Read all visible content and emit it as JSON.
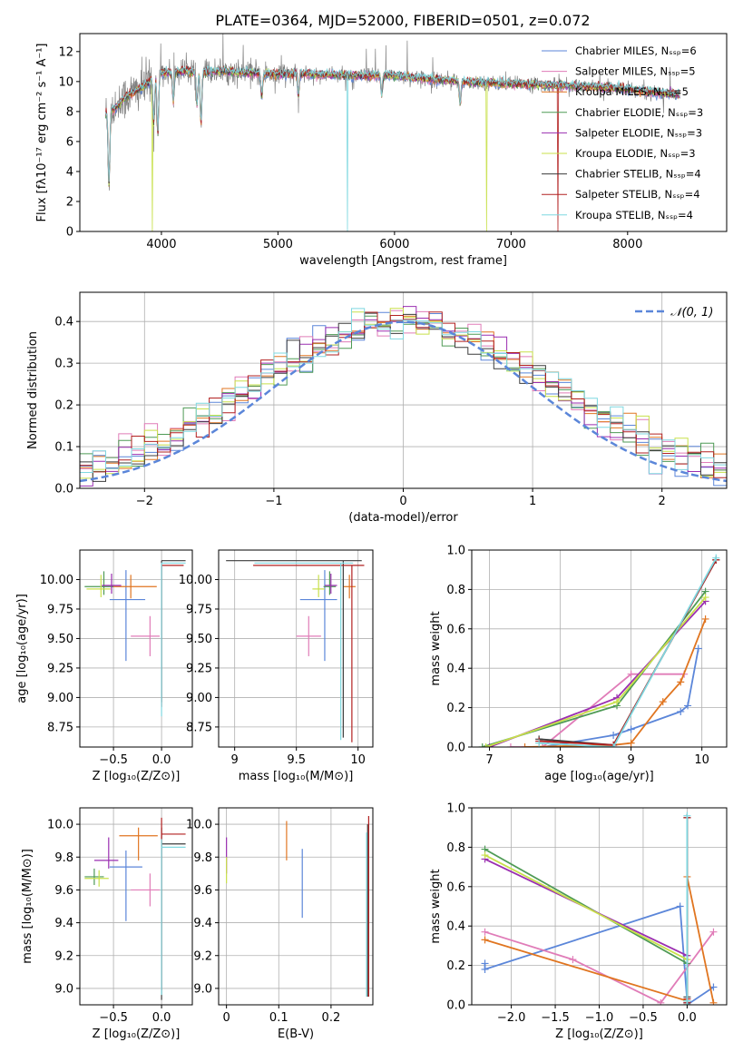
{
  "figure": {
    "title": "PLATE=0364, MJD=52000, FIBERID=0501, z=0.072"
  },
  "colors": {
    "blue": "#5b86d9",
    "pink": "#e07cb8",
    "orange": "#e07520",
    "green": "#4e9a55",
    "purple": "#9a2eb0",
    "lime": "#c8e04a",
    "dark": "#3c3c3c",
    "red": "#b22020",
    "cyan": "#7fd8e0",
    "gray": "#808080"
  },
  "chart_data": [
    {
      "id": "spectrum",
      "type": "line",
      "xlabel": "wavelength [Angstrom, rest frame]",
      "ylabel": "Flux [fλ10⁻¹⁷ erg cm⁻² s⁻¹ A⁻¹]",
      "xlim": [
        3300,
        8850
      ],
      "ylim": [
        0,
        13.2
      ],
      "xticks": [
        4000,
        5000,
        6000,
        7000,
        8000
      ],
      "yticks": [
        0,
        2,
        4,
        6,
        8,
        10,
        12
      ],
      "grid": false,
      "legend_position": "upper-right",
      "legend": [
        {
          "label": "Chabrier MILES, Nₛₛₚ=6",
          "color": "blue"
        },
        {
          "label": "Salpeter MILES, Nₛₛₚ=5",
          "color": "pink"
        },
        {
          "label": "Kroupa MILES, Nₛₛₚ=5",
          "color": "orange"
        },
        {
          "label": "Chabrier ELODIE, Nₛₛₚ=3",
          "color": "green"
        },
        {
          "label": "Salpeter ELODIE, Nₛₛₚ=3",
          "color": "purple"
        },
        {
          "label": "Kroupa ELODIE, Nₛₛₚ=3",
          "color": "lime"
        },
        {
          "label": "Chabrier STELIB, Nₛₛₚ=4",
          "color": "dark"
        },
        {
          "label": "Salpeter STELIB, Nₛₛₚ=4",
          "color": "red"
        },
        {
          "label": "Kroupa STELIB, Nₛₛₚ=4",
          "color": "cyan"
        }
      ],
      "continuum": {
        "x": [
          3520,
          3600,
          3700,
          3800,
          3900,
          4000,
          4100,
          4200,
          4300,
          4500,
          4700,
          5000,
          5300,
          5600,
          6000,
          6400,
          6800,
          7200,
          7600,
          8000,
          8200,
          8450
        ],
        "y": [
          7.8,
          8.2,
          9.0,
          9.4,
          10.0,
          10.6,
          10.6,
          10.7,
          10.6,
          10.7,
          10.6,
          10.5,
          10.5,
          10.4,
          10.4,
          10.1,
          9.9,
          9.8,
          9.7,
          9.5,
          9.3,
          9.1
        ]
      },
      "absorption_lines": [
        {
          "x": 3550,
          "depth": 4.8
        },
        {
          "x": 3934,
          "depth": 3.0
        },
        {
          "x": 3969,
          "depth": 4.0
        },
        {
          "x": 4102,
          "depth": 2.0
        },
        {
          "x": 4305,
          "depth": 2.2
        },
        {
          "x": 4340,
          "depth": 3.5
        },
        {
          "x": 4861,
          "depth": 1.6
        },
        {
          "x": 5175,
          "depth": 1.5
        },
        {
          "x": 5890,
          "depth": 1.3
        },
        {
          "x": 6563,
          "depth": 1.6
        }
      ],
      "model_dropouts": [
        {
          "x": 3920,
          "color": "lime"
        },
        {
          "x": 5595,
          "color": "cyan"
        },
        {
          "x": 6790,
          "color": "lime"
        },
        {
          "x": 7400,
          "color": "red"
        }
      ]
    },
    {
      "id": "residuals",
      "type": "histogram",
      "xlabel": "(data-model)/error",
      "ylabel": "Normed distribution",
      "xlim": [
        -2.5,
        2.5
      ],
      "ylim": [
        0,
        0.47
      ],
      "xticks": [
        -2,
        -1,
        0,
        1,
        2
      ],
      "yticks": [
        0.0,
        0.1,
        0.2,
        0.3,
        0.4
      ],
      "grid": true,
      "bin_width": 0.1,
      "legend_position": "upper-right",
      "legend": [
        {
          "label": "𝒩(0, 1)",
          "color": "blue",
          "style": "dashed"
        }
      ],
      "reference": {
        "name": "normal",
        "mean": 0,
        "sigma": 1
      }
    },
    {
      "id": "age-vs-Z",
      "type": "errorbar",
      "xlabel": "Z [log₁₀(Z/Z⊙)]",
      "ylabel": "age  [log₁₀(age/yr)]",
      "xlim": [
        -0.85,
        0.32
      ],
      "ylim": [
        8.58,
        10.25
      ],
      "xticks": [
        -0.5,
        0.0
      ],
      "xticklabels": [
        "−0.5",
        "0.0"
      ],
      "yticks": [
        8.75,
        9.0,
        9.25,
        9.5,
        9.75,
        10.0
      ],
      "yticklabels": [
        "8.75",
        "9.00",
        "9.25",
        "9.50",
        "9.75",
        "10.00"
      ],
      "grid": true,
      "points": [
        {
          "c": "blue",
          "x": -0.37,
          "y": 9.83,
          "xlo": 0.17,
          "xhi": 0.2,
          "ylo": 0.52,
          "yhi": 0.25
        },
        {
          "c": "pink",
          "x": -0.12,
          "y": 9.52,
          "xlo": 0.2,
          "xhi": 0.1,
          "ylo": 0.17,
          "yhi": 0.17
        },
        {
          "c": "orange",
          "x": -0.32,
          "y": 9.94,
          "xlo": 0.2,
          "xhi": 0.27,
          "ylo": 0.1,
          "yhi": 0.1
        },
        {
          "c": "green",
          "x": -0.6,
          "y": 9.94,
          "xlo": 0.2,
          "xhi": 0.1,
          "ylo": 0.07,
          "yhi": 0.13
        },
        {
          "c": "purple",
          "x": -0.52,
          "y": 9.95,
          "xlo": 0.1,
          "xhi": 0.1,
          "ylo": 0.07,
          "yhi": 0.1
        },
        {
          "c": "lime",
          "x": -0.63,
          "y": 9.92,
          "xlo": 0.15,
          "xhi": 0.1,
          "ylo": 0.07,
          "yhi": 0.12
        },
        {
          "c": "dark",
          "x": 0.0,
          "y": 10.16,
          "xlo": 0.0,
          "xhi": 0.25,
          "ylo": 1.2,
          "yhi": 0.0
        },
        {
          "c": "red",
          "x": 0.0,
          "y": 10.12,
          "xlo": 0.0,
          "xhi": 0.23,
          "ylo": 1.2,
          "yhi": 0.0
        },
        {
          "c": "cyan",
          "x": 0.0,
          "y": 10.14,
          "xlo": 0.0,
          "xhi": 0.25,
          "ylo": 1.3,
          "yhi": 0.0
        }
      ]
    },
    {
      "id": "age-vs-mass",
      "type": "errorbar",
      "xlabel": "mass [log₁₀(M/M⊙)]",
      "ylabel": "",
      "xlim": [
        8.87,
        10.12
      ],
      "ylim": [
        8.58,
        10.25
      ],
      "xticks": [
        9.0,
        9.5,
        10.0
      ],
      "yticks": [
        8.75,
        9.0,
        9.25,
        9.5,
        9.75,
        10.0
      ],
      "yticklabels": [
        "8.75",
        "9.00",
        "9.25",
        "9.50",
        "9.75",
        "10.00"
      ],
      "grid": true,
      "points": [
        {
          "c": "blue",
          "x": 9.73,
          "y": 9.83,
          "xlo": 0.2,
          "xhi": 0.1,
          "ylo": 0.52,
          "yhi": 0.25
        },
        {
          "c": "pink",
          "x": 9.6,
          "y": 9.52,
          "xlo": 0.1,
          "xhi": 0.1,
          "ylo": 0.17,
          "yhi": 0.17
        },
        {
          "c": "orange",
          "x": 9.93,
          "y": 9.94,
          "xlo": 0.05,
          "xhi": 0.05,
          "ylo": 0.1,
          "yhi": 0.1
        },
        {
          "c": "green",
          "x": 9.77,
          "y": 9.94,
          "xlo": 0.05,
          "xhi": 0.05,
          "ylo": 0.07,
          "yhi": 0.13
        },
        {
          "c": "purple",
          "x": 9.78,
          "y": 9.95,
          "xlo": 0.05,
          "xhi": 0.05,
          "ylo": 0.07,
          "yhi": 0.1
        },
        {
          "c": "lime",
          "x": 9.68,
          "y": 9.92,
          "xlo": 0.05,
          "xhi": 0.05,
          "ylo": 0.07,
          "yhi": 0.12
        },
        {
          "c": "dark",
          "x": 9.88,
          "y": 10.16,
          "xlo": 0.95,
          "xhi": 0.15,
          "ylo": 1.5,
          "yhi": 0.0
        },
        {
          "c": "red",
          "x": 9.95,
          "y": 10.12,
          "xlo": 0.8,
          "xhi": 0.1,
          "ylo": 1.5,
          "yhi": 0.0
        },
        {
          "c": "cyan",
          "x": 9.86,
          "y": 10.14,
          "xlo": 0.7,
          "xhi": 0.1,
          "ylo": 1.5,
          "yhi": 0.0
        }
      ]
    },
    {
      "id": "massweight-vs-age",
      "type": "line",
      "xlabel": "age  [log₁₀(age/yr)]",
      "ylabel": "mass weight",
      "xlim": [
        6.75,
        10.35
      ],
      "ylim": [
        0,
        1.0
      ],
      "xticks": [
        7,
        8,
        9,
        10
      ],
      "yticks": [
        0.0,
        0.2,
        0.4,
        0.6,
        0.8,
        1.0
      ],
      "grid": true,
      "series": [
        {
          "c": "blue",
          "x": [
            7.75,
            8.75,
            9.0,
            9.7,
            9.8,
            9.95
          ],
          "y": [
            0.0,
            0.06,
            0.09,
            0.18,
            0.21,
            0.5
          ]
        },
        {
          "c": "pink",
          "x": [
            7.3,
            7.75,
            9.0,
            9.75
          ],
          "y": [
            0.0,
            0.0,
            0.37,
            0.37
          ]
        },
        {
          "c": "orange",
          "x": [
            7.5,
            8.75,
            9.0,
            9.45,
            9.7,
            10.05
          ],
          "y": [
            0.0,
            0.01,
            0.02,
            0.23,
            0.33,
            0.65
          ]
        },
        {
          "c": "green",
          "x": [
            6.9,
            8.8,
            10.05
          ],
          "y": [
            0.0,
            0.21,
            0.79
          ]
        },
        {
          "c": "purple",
          "x": [
            7.0,
            8.8,
            10.05
          ],
          "y": [
            0.0,
            0.25,
            0.74
          ]
        },
        {
          "c": "lime",
          "x": [
            6.95,
            8.8,
            10.05
          ],
          "y": [
            0.0,
            0.23,
            0.76
          ]
        },
        {
          "c": "dark",
          "x": [
            7.7,
            8.75,
            10.2
          ],
          "y": [
            0.04,
            0.01,
            0.95
          ]
        },
        {
          "c": "red",
          "x": [
            7.7,
            8.75,
            10.2
          ],
          "y": [
            0.03,
            0.01,
            0.95
          ]
        },
        {
          "c": "cyan",
          "x": [
            7.7,
            8.75,
            10.2
          ],
          "y": [
            0.02,
            0.0,
            0.96
          ]
        }
      ]
    },
    {
      "id": "mass-vs-Z",
      "type": "errorbar",
      "xlabel": "Z [log₁₀(Z/Z⊙)]",
      "ylabel": "mass [log₁₀(M/M⊙)]",
      "xlim": [
        -0.85,
        0.32
      ],
      "ylim": [
        8.9,
        10.1
      ],
      "xticks": [
        -0.5,
        0.0
      ],
      "xticklabels": [
        "−0.5",
        "0.0"
      ],
      "yticks": [
        9.0,
        9.2,
        9.4,
        9.6,
        9.8,
        10.0
      ],
      "grid": true,
      "points": [
        {
          "c": "blue",
          "x": -0.37,
          "y": 9.74,
          "xlo": 0.17,
          "xhi": 0.17,
          "ylo": 0.33,
          "yhi": 0.1
        },
        {
          "c": "pink",
          "x": -0.12,
          "y": 9.6,
          "xlo": 0.2,
          "xhi": 0.1,
          "ylo": 0.1,
          "yhi": 0.1
        },
        {
          "c": "orange",
          "x": -0.24,
          "y": 9.93,
          "xlo": 0.2,
          "xhi": 0.2,
          "ylo": 0.15,
          "yhi": 0.05
        },
        {
          "c": "green",
          "x": -0.7,
          "y": 9.68,
          "xlo": 0.1,
          "xhi": 0.1,
          "ylo": 0.05,
          "yhi": 0.05
        },
        {
          "c": "purple",
          "x": -0.55,
          "y": 9.78,
          "xlo": 0.15,
          "xhi": 0.1,
          "ylo": 0.05,
          "yhi": 0.14
        },
        {
          "c": "lime",
          "x": -0.65,
          "y": 9.67,
          "xlo": 0.15,
          "xhi": 0.1,
          "ylo": 0.05,
          "yhi": 0.05
        },
        {
          "c": "dark",
          "x": 0.0,
          "y": 9.88,
          "xlo": 0.0,
          "xhi": 0.25,
          "ylo": 0.95,
          "yhi": 0.1
        },
        {
          "c": "red",
          "x": 0.0,
          "y": 9.94,
          "xlo": 0.0,
          "xhi": 0.25,
          "ylo": 0.95,
          "yhi": 0.1
        },
        {
          "c": "cyan",
          "x": 0.0,
          "y": 9.86,
          "xlo": 0.0,
          "xhi": 0.25,
          "ylo": 0.9,
          "yhi": 0.05
        }
      ]
    },
    {
      "id": "mass-vs-ebv",
      "type": "errorbar",
      "xlabel": "E(B-V)",
      "ylabel": "",
      "xlim": [
        -0.015,
        0.28
      ],
      "ylim": [
        8.9,
        10.1
      ],
      "xticks": [
        0.0,
        0.1,
        0.2
      ],
      "yticks": [
        9.0,
        9.2,
        9.4,
        9.6,
        9.8,
        10.0
      ],
      "grid": true,
      "points": [
        {
          "c": "blue",
          "x": 0.145,
          "y": 9.65,
          "xlo": 0,
          "xhi": 0,
          "ylo": 0.22,
          "yhi": 0.2
        },
        {
          "c": "orange",
          "x": 0.115,
          "y": 9.9,
          "xlo": 0,
          "xhi": 0,
          "ylo": 0.12,
          "yhi": 0.12
        },
        {
          "c": "purple",
          "x": 0.0,
          "y": 9.8,
          "xlo": 0,
          "xhi": 0,
          "ylo": 0.1,
          "yhi": 0.12
        },
        {
          "c": "lime",
          "x": 0.0,
          "y": 9.72,
          "xlo": 0,
          "xhi": 0,
          "ylo": 0.08,
          "yhi": 0.08
        },
        {
          "c": "dark",
          "x": 0.27,
          "y": 9.5,
          "xlo": 0,
          "xhi": 0,
          "ylo": 0.55,
          "yhi": 0.5
        },
        {
          "c": "red",
          "x": 0.272,
          "y": 9.55,
          "xlo": 0,
          "xhi": 0,
          "ylo": 0.6,
          "yhi": 0.5
        },
        {
          "c": "cyan",
          "x": 0.268,
          "y": 9.5,
          "xlo": 0,
          "xhi": 0,
          "ylo": 0.55,
          "yhi": 0.45
        }
      ]
    },
    {
      "id": "massweight-vs-Z",
      "type": "line",
      "xlabel": "Z [log₁₀(Z/Z⊙)]",
      "ylabel": "mass weight",
      "xlim": [
        -2.45,
        0.45
      ],
      "ylim": [
        0,
        1.0
      ],
      "xticks": [
        -2.0,
        -1.5,
        -1.0,
        -0.5,
        0.0
      ],
      "xticklabels": [
        "−2.0",
        "−1.5",
        "−1.0",
        "−0.5",
        "0.0"
      ],
      "yticks": [
        0.0,
        0.2,
        0.4,
        0.6,
        0.8,
        1.0
      ],
      "grid": true,
      "series": [
        {
          "c": "blue",
          "x": [
            -2.3,
            -2.3,
            -0.08,
            0.0,
            0.0,
            0.3
          ],
          "y": [
            0.21,
            0.18,
            0.5,
            0.02,
            0.0,
            0.09
          ]
        },
        {
          "c": "pink",
          "x": [
            -2.3,
            -1.3,
            -0.3,
            0.3
          ],
          "y": [
            0.37,
            0.23,
            0.01,
            0.37
          ]
        },
        {
          "c": "orange",
          "x": [
            -2.3,
            0.0,
            0.0,
            0.3
          ],
          "y": [
            0.33,
            0.02,
            0.65,
            0.01
          ]
        },
        {
          "c": "green",
          "x": [
            -2.3,
            0.0,
            0.0
          ],
          "y": [
            0.79,
            0.21,
            0.0
          ]
        },
        {
          "c": "purple",
          "x": [
            -2.3,
            0.0,
            0.0
          ],
          "y": [
            0.74,
            0.25,
            0.01
          ]
        },
        {
          "c": "lime",
          "x": [
            -2.3,
            0.0,
            0.0
          ],
          "y": [
            0.76,
            0.23,
            0.0
          ]
        },
        {
          "c": "dark",
          "x": [
            0.0,
            0.0,
            0.0
          ],
          "y": [
            0.95,
            0.04,
            0.01
          ]
        },
        {
          "c": "red",
          "x": [
            0.0,
            0.0,
            0.0
          ],
          "y": [
            0.95,
            0.03,
            0.01
          ]
        },
        {
          "c": "cyan",
          "x": [
            0.0,
            0.0,
            0.0
          ],
          "y": [
            0.96,
            0.02,
            0.0
          ]
        }
      ]
    }
  ]
}
